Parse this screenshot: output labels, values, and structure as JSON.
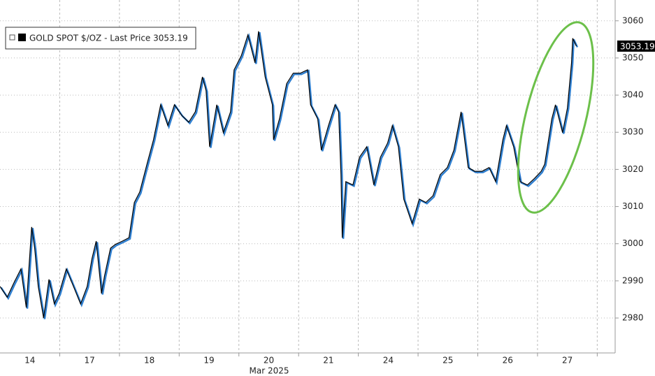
{
  "chart_data": {
    "type": "line",
    "x_sublabel": "Mar 2025",
    "xlim": [
      0,
      10.3
    ],
    "xticks": [
      {
        "value": 0.5,
        "label": "14"
      },
      {
        "value": 1.5,
        "label": "17"
      },
      {
        "value": 2.5,
        "label": "18"
      },
      {
        "value": 3.5,
        "label": "19"
      },
      {
        "value": 4.5,
        "label": "20"
      },
      {
        "value": 5.5,
        "label": "21"
      },
      {
        "value": 6.5,
        "label": "24"
      },
      {
        "value": 7.5,
        "label": "25"
      },
      {
        "value": 8.5,
        "label": "26"
      },
      {
        "value": 9.5,
        "label": "27"
      }
    ],
    "ylim": [
      2970.6,
      3065.6
    ],
    "yticks": [
      2980,
      2990,
      3000,
      3010,
      3020,
      3030,
      3040,
      3050,
      3060
    ],
    "grid": true,
    "legend": "top-left",
    "last_value": 3053.19,
    "x": [
      0,
      0.12,
      0.23,
      0.35,
      0.44,
      0.53,
      0.58,
      0.64,
      0.73,
      0.82,
      0.91,
      0.99,
      1.11,
      1.23,
      1.35,
      1.46,
      1.54,
      1.61,
      1.7,
      1.75,
      1.85,
      1.93,
      2.05,
      2.16,
      2.25,
      2.34,
      2.46,
      2.57,
      2.69,
      2.81,
      2.92,
      3.04,
      3.16,
      3.27,
      3.39,
      3.45,
      3.51,
      3.63,
      3.74,
      3.86,
      3.92,
      4.04,
      4.15,
      4.27,
      4.33,
      4.44,
      4.56,
      4.58,
      4.68,
      4.8,
      4.91,
      5.03,
      5.15,
      5.2,
      5.32,
      5.38,
      5.5,
      5.61,
      5.67,
      5.71,
      5.73,
      5.79,
      5.91,
      6.02,
      6.14,
      6.26,
      6.37,
      6.49,
      6.57,
      6.67,
      6.76,
      6.9,
      7.02,
      7.13,
      7.25,
      7.37,
      7.49,
      7.6,
      7.72,
      7.84,
      7.95,
      8.07,
      8.19,
      8.3,
      8.42,
      8.48,
      8.6,
      8.71,
      8.83,
      8.95,
      9.06,
      9.12,
      9.24,
      9.3,
      9.42,
      9.5,
      9.57,
      9.59,
      9.65
    ],
    "series": [
      {
        "name": "GOLD SPOT $/OZ - Last Price 3053.19",
        "color": "#000000",
        "values": [
          2988.5,
          2985.6,
          2989.4,
          2993.2,
          2982.8,
          3004.5,
          2998.8,
          2988.5,
          2980,
          2990.4,
          2983.8,
          2986.6,
          2993.2,
          2988.5,
          2983.8,
          2988.5,
          2996,
          3000.7,
          2986.6,
          2991.3,
          2998.8,
          2999.8,
          3000.7,
          3001.6,
          3011.1,
          3013.9,
          3021.4,
          3028,
          3037.4,
          3031.8,
          3037.4,
          3034.6,
          3032.7,
          3035.5,
          3044.9,
          3041.2,
          3026.1,
          3037.4,
          3029.9,
          3035.5,
          3046.8,
          3050.6,
          3056.2,
          3048.7,
          3057.2,
          3044.9,
          3037.4,
          3028,
          3033.6,
          3043.1,
          3045.9,
          3045.9,
          3046.8,
          3037.4,
          3033.6,
          3025.2,
          3031.8,
          3037.4,
          3035.5,
          3018.6,
          3001.6,
          3016.7,
          3015.8,
          3023.3,
          3026.1,
          3015.8,
          3023.3,
          3027.1,
          3031.8,
          3026.1,
          3012,
          3005.4,
          3012,
          3011.1,
          3012.9,
          3018.6,
          3020.5,
          3025.2,
          3035.5,
          3020.5,
          3019.5,
          3019.5,
          3020.5,
          3016.7,
          3028,
          3031.8,
          3026.1,
          3016.7,
          3015.8,
          3017.6,
          3019.5,
          3021.4,
          3033.6,
          3037.4,
          3029.9,
          3036.5,
          3048.7,
          3055.3,
          3053.19
        ]
      }
    ]
  }
}
